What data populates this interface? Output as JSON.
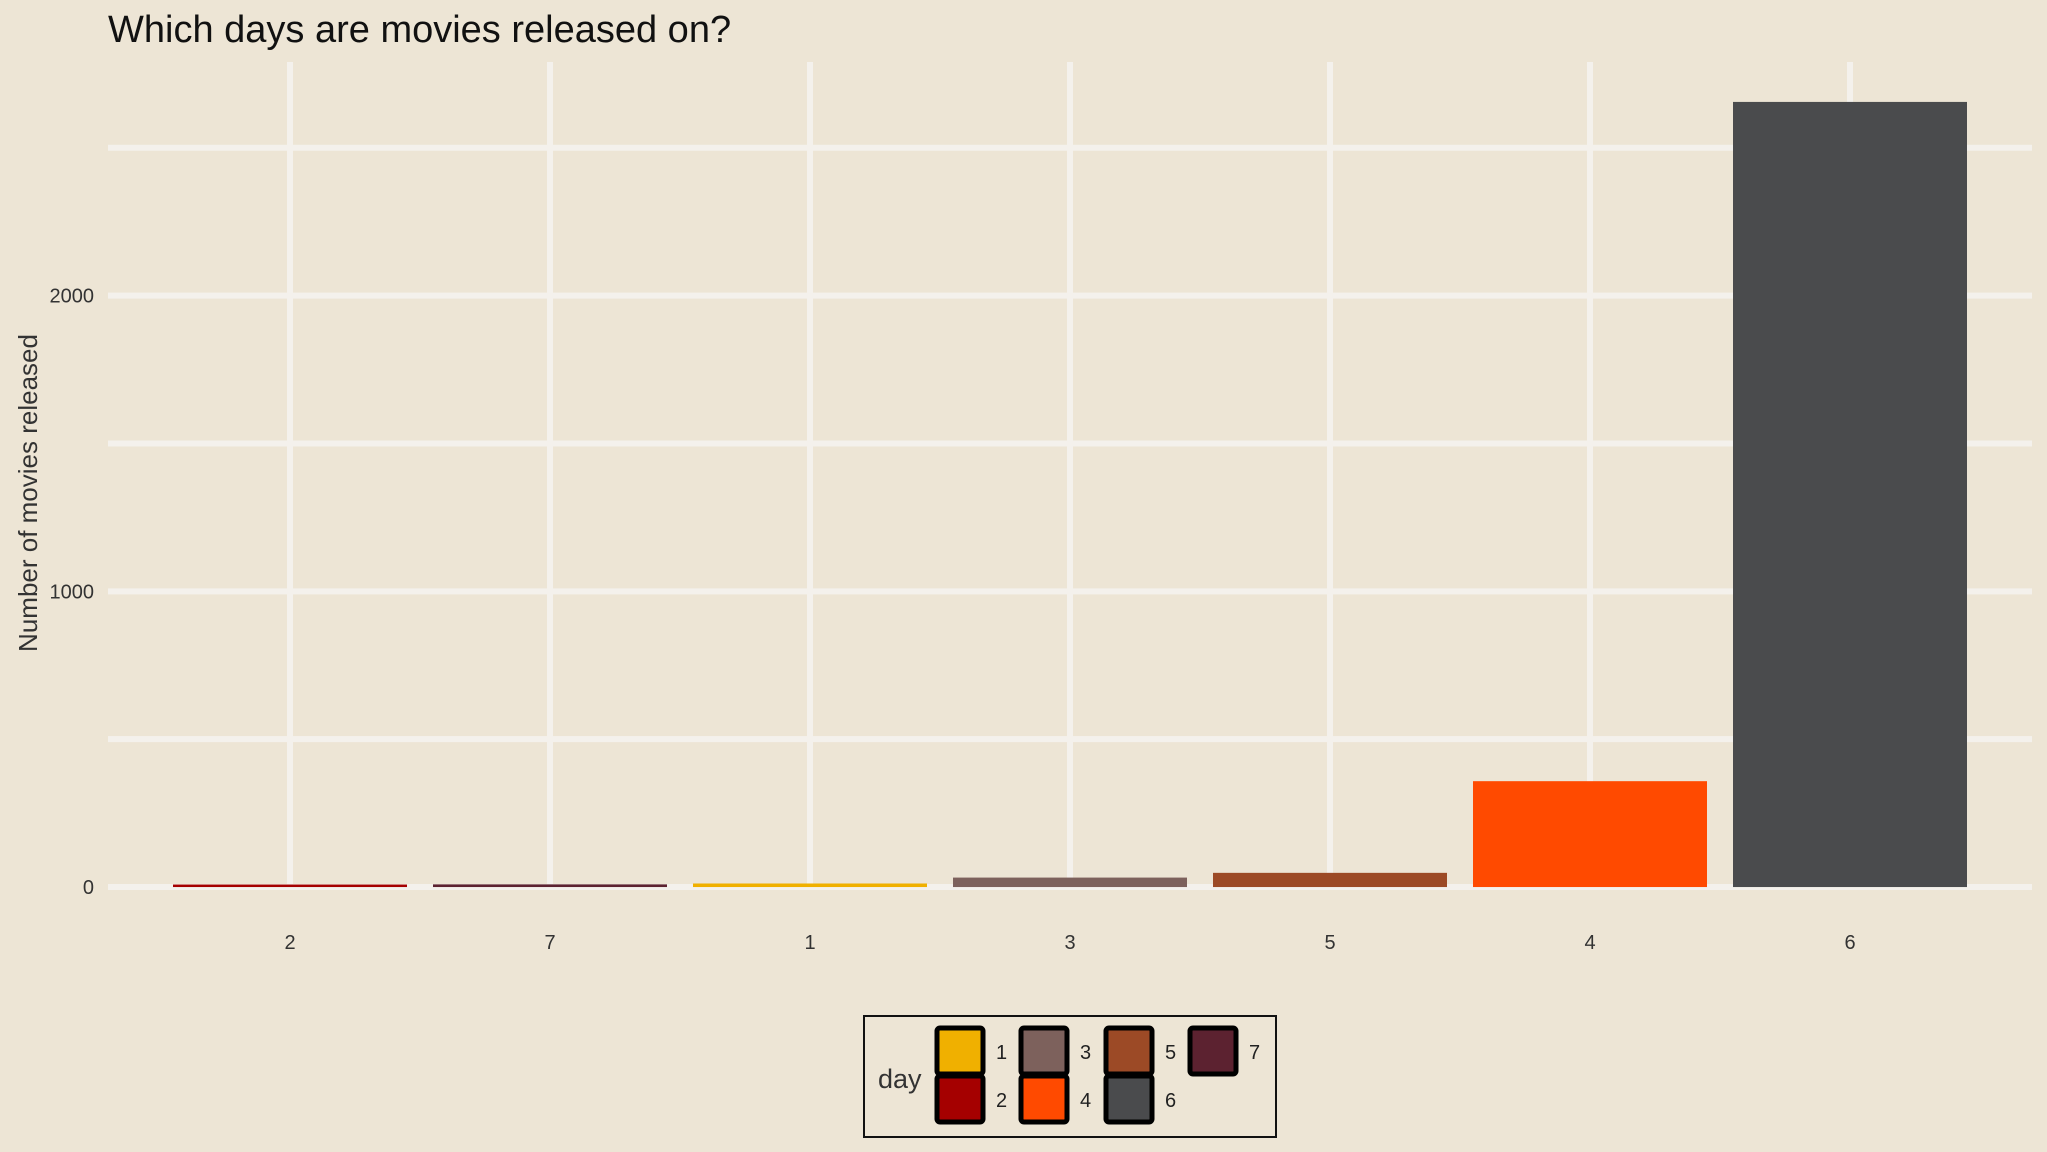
{
  "chart_data": {
    "type": "bar",
    "title": "Which days are movies released on?",
    "xlabel": "",
    "ylabel": "Number of movies released",
    "categories": [
      "2",
      "7",
      "1",
      "3",
      "5",
      "4",
      "6"
    ],
    "values": [
      4,
      9,
      12,
      32,
      48,
      358,
      2655
    ],
    "colors": [
      "#a50000",
      "#5c2230",
      "#f0b000",
      "#7d615c",
      "#9c4a26",
      "#ff4a00",
      "#4a4b4d"
    ],
    "ylim": [
      -10,
      2790
    ],
    "yticks": [
      0,
      1000,
      2000
    ],
    "grid": true,
    "background": "#ede5d5",
    "legend": {
      "title": "day",
      "position": "bottom",
      "items": [
        {
          "label": "1",
          "color": "#f0b000"
        },
        {
          "label": "2",
          "color": "#a50000"
        },
        {
          "label": "3",
          "color": "#7d615c"
        },
        {
          "label": "4",
          "color": "#ff4a00"
        },
        {
          "label": "5",
          "color": "#9c4a26"
        },
        {
          "label": "6",
          "color": "#4a4b4d"
        },
        {
          "label": "7",
          "color": "#5c2230"
        }
      ]
    }
  }
}
